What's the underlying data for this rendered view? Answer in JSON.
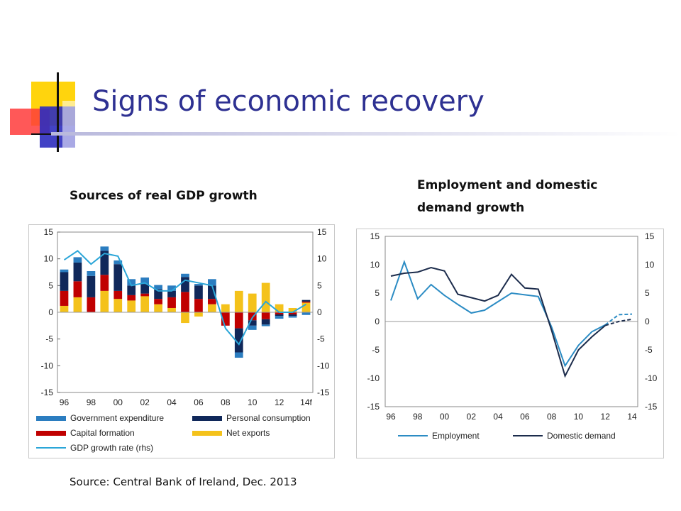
{
  "slide": {
    "title": "Signs of economic recovery",
    "source": "Source: Central Bank of Ireland, Dec. 2013"
  },
  "colors": {
    "title": "#2e3192",
    "government": "#2b7dc0",
    "personal": "#10285a",
    "capital": "#c00000",
    "net_exports": "#f4c21b",
    "gdp_line": "#2ba6d8",
    "employment": "#2c8cc4",
    "domestic": "#1c2c4c"
  },
  "chart_data": [
    {
      "type": "bar",
      "stacked": true,
      "title": "Sources of real GDP growth",
      "categories": [
        "96",
        "97",
        "98",
        "99",
        "00",
        "01",
        "02",
        "03",
        "04",
        "05",
        "06",
        "07",
        "08",
        "09",
        "10",
        "11",
        "12",
        "13",
        "14f"
      ],
      "tick_labels": [
        "96",
        "98",
        "00",
        "02",
        "04",
        "06",
        "08",
        "10",
        "12",
        "14f"
      ],
      "ylim": [
        -15,
        15
      ],
      "y_ticks": [
        15,
        10,
        5,
        0,
        -5,
        -10,
        -15
      ],
      "y2lim": [
        -15,
        15
      ],
      "y2_ticks": [
        15,
        10,
        5,
        0,
        -5,
        -10,
        -15
      ],
      "series": [
        {
          "name": "Net exports",
          "color_key": "net_exports",
          "values": [
            1.2,
            2.8,
            0,
            4.0,
            2.5,
            2.2,
            3.0,
            1.5,
            0.8,
            -2.0,
            -0.8,
            1.5,
            1.5,
            4.0,
            3.5,
            5.5,
            1.5,
            0.8,
            1.8
          ]
        },
        {
          "name": "Capital formation",
          "color_key": "capital",
          "values": [
            2.8,
            3.0,
            2.8,
            3.0,
            1.5,
            1.0,
            0.5,
            1.0,
            2.0,
            3.8,
            2.5,
            1.0,
            -2.5,
            -3.0,
            -1.5,
            -1.3,
            -0.4,
            -0.4,
            0.2
          ]
        },
        {
          "name": "Personal consumption",
          "color_key": "personal",
          "values": [
            3.5,
            3.5,
            4.0,
            4.5,
            5.0,
            1.8,
            1.8,
            1.8,
            1.2,
            2.8,
            2.5,
            2.5,
            0,
            -4.5,
            -1.0,
            -1.0,
            -0.3,
            -0.3,
            0.3
          ]
        },
        {
          "name": "Government expenditure",
          "color_key": "government",
          "values": [
            0.5,
            1.0,
            0.9,
            0.8,
            0.7,
            1.2,
            1.2,
            0.8,
            1.0,
            0.6,
            0.3,
            1.2,
            0,
            -1.0,
            -0.8,
            -0.3,
            -0.5,
            -0.3,
            -0.5
          ]
        }
      ],
      "line_series": {
        "name": "GDP growth rate (rhs)",
        "axis": "rhs",
        "values": [
          9.8,
          11.5,
          9.0,
          11.0,
          10.5,
          5.0,
          5.5,
          4.0,
          4.0,
          6.0,
          5.5,
          5.0,
          -3.0,
          -6.0,
          -1.0,
          2.0,
          0,
          0,
          1.5
        ]
      },
      "legend": {
        "placement": "bottom",
        "items": [
          "Government expenditure",
          "Personal consumption",
          "Capital formation",
          "Net exports",
          "GDP growth rate (rhs)"
        ]
      }
    },
    {
      "type": "line",
      "title": "Employment and domestic demand growth",
      "x": [
        96,
        97,
        98,
        99,
        100,
        101,
        102,
        103,
        104,
        105,
        106,
        107,
        108,
        109,
        110,
        111,
        112,
        113,
        114
      ],
      "tick_labels": [
        "96",
        "98",
        "00",
        "02",
        "04",
        "06",
        "08",
        "10",
        "12",
        "14"
      ],
      "ylim": [
        -15,
        15
      ],
      "y_ticks": [
        15,
        10,
        5,
        0,
        -5,
        -10,
        -15
      ],
      "y2_ticks": [
        15,
        10,
        5,
        0,
        -5,
        -10,
        -15
      ],
      "forecast_from_index": 16,
      "series": [
        {
          "name": "Employment",
          "color_key": "employment",
          "values": [
            3.7,
            10.5,
            4.0,
            6.5,
            4.6,
            3.0,
            1.5,
            2.0,
            3.5,
            5.0,
            4.7,
            4.4,
            -1.0,
            -7.8,
            -4.2,
            -1.8,
            -0.6,
            1.2,
            1.3
          ]
        },
        {
          "name": "Domestic demand",
          "color_key": "domestic",
          "values": [
            8.0,
            8.5,
            8.7,
            9.5,
            8.9,
            4.8,
            4.2,
            3.6,
            4.6,
            8.3,
            5.9,
            5.7,
            -1.6,
            -9.6,
            -5.0,
            -2.7,
            -0.7,
            0.0,
            0.4
          ]
        }
      ],
      "legend": {
        "placement": "bottom",
        "items": [
          "Employment",
          "Domestic demand"
        ]
      }
    }
  ]
}
